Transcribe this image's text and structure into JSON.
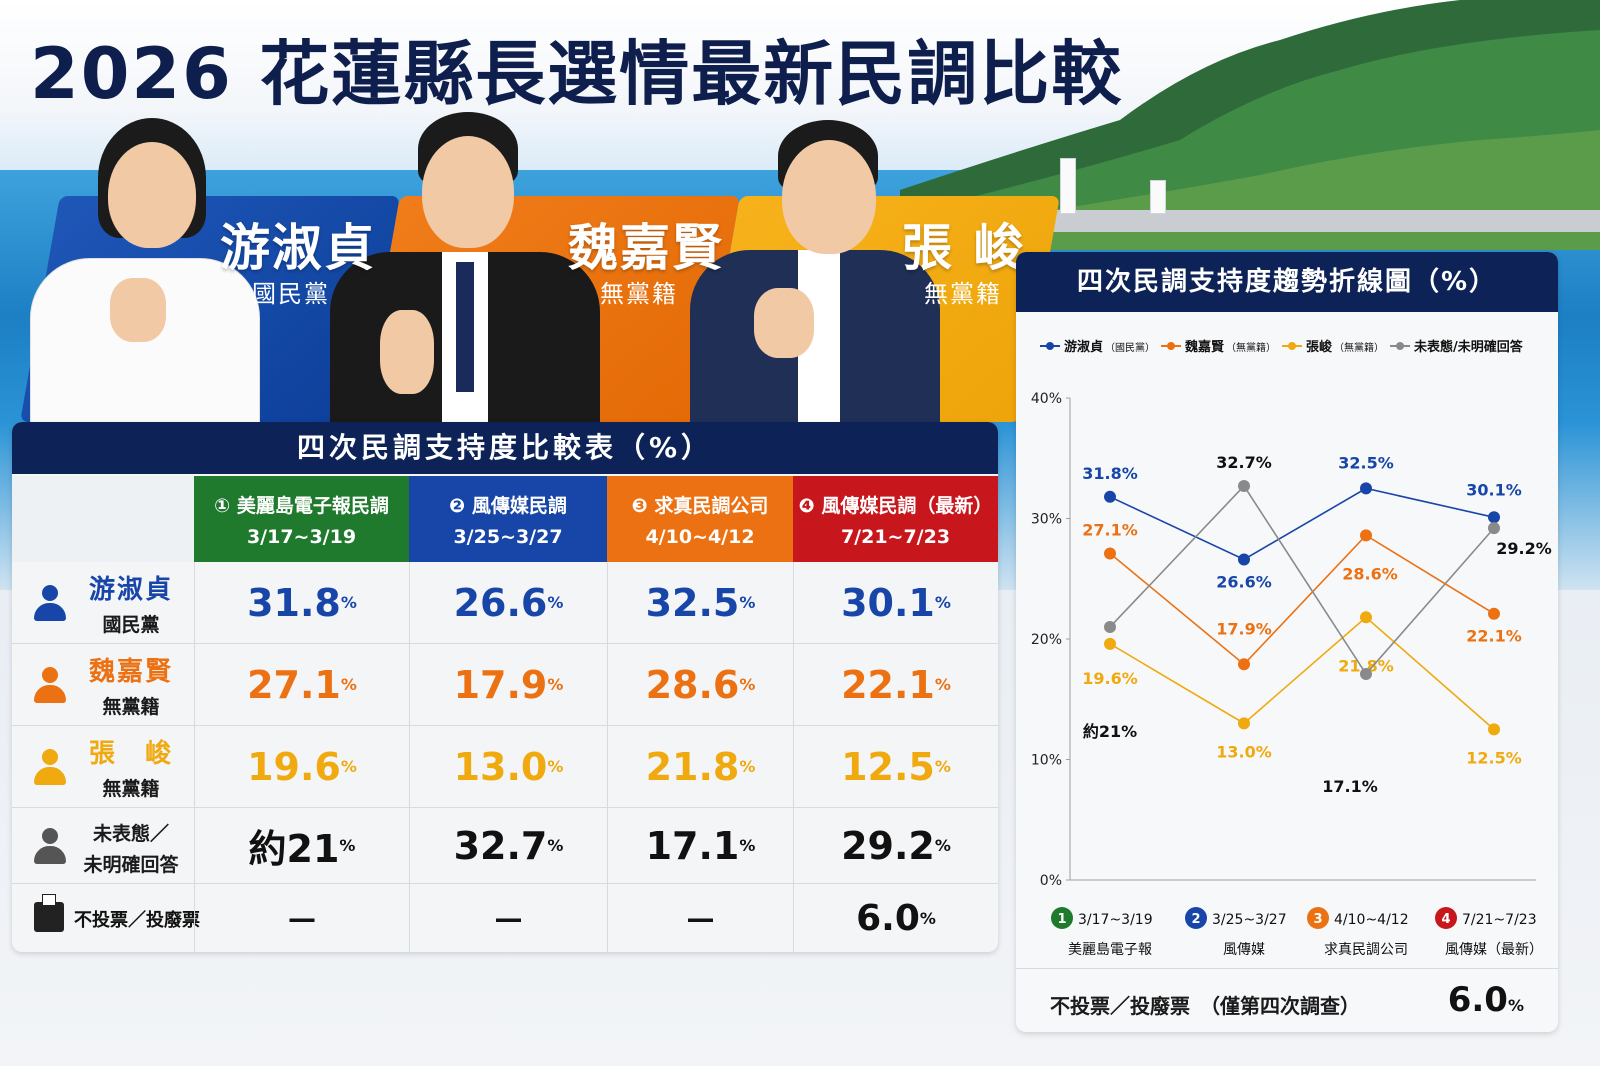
{
  "title": "2026 花蓮縣長選情最新民調比較",
  "candidates": [
    {
      "name": "游淑貞",
      "party": "國民黨",
      "color": "#1846a8"
    },
    {
      "name": "魏嘉賢",
      "party": "無黨籍",
      "color": "#ec7112"
    },
    {
      "name": "張 峻",
      "party": "無黨籍",
      "color": "#f0a90e"
    }
  ],
  "table": {
    "title": "四次民調支持度比較表（%）",
    "columns": [
      {
        "num": "①",
        "name": "美麗島電子報民調",
        "date": "3/17~3/19",
        "color": "#1f7a2e"
      },
      {
        "num": "❷",
        "name": "風傳媒民調",
        "date": "3/25~3/27",
        "color": "#1846a8"
      },
      {
        "num": "❸",
        "name": "求真民調公司",
        "date": "4/10~4/12",
        "color": "#ec7112"
      },
      {
        "num": "❹",
        "name": "風傳媒民調（最新）",
        "date": "7/21~7/23",
        "color": "#c8161d"
      }
    ],
    "rows": [
      {
        "name": "游淑貞",
        "party": "國民黨",
        "color": "#1846a8",
        "values": [
          "31.8",
          "26.6",
          "32.5",
          "30.1"
        ]
      },
      {
        "name": "魏嘉賢",
        "party": "無黨籍",
        "color": "#ec7112",
        "values": [
          "27.1",
          "17.9",
          "28.6",
          "22.1"
        ]
      },
      {
        "name": "張　峻",
        "party": "無黨籍",
        "color": "#f0a90e",
        "values": [
          "19.6",
          "13.0",
          "21.8",
          "12.5"
        ]
      },
      {
        "name_line1": "未表態／",
        "name_line2": "未明確回答",
        "color": "#111111",
        "icon_color": "#555555",
        "values": [
          "約21",
          "32.7",
          "17.1",
          "29.2"
        ]
      }
    ],
    "invalid_row": {
      "label": "不投票／投廢票",
      "values": [
        "—",
        "—",
        "—",
        "6.0"
      ]
    },
    "unit": "%"
  },
  "chart_data": {
    "type": "line",
    "title": "四次民調支持度趨勢折線圖（%）",
    "categories": [
      "3/17~3/19",
      "3/25~3/27",
      "4/10~4/12",
      "7/21~7/23"
    ],
    "category_sources": [
      "美麗島電子報",
      "風傳媒",
      "求真民調公司",
      "風傳媒（最新）"
    ],
    "category_numbers": [
      "1",
      "2",
      "3",
      "4"
    ],
    "category_colors": [
      "#1f7a2e",
      "#1846a8",
      "#ec7112",
      "#c8161d"
    ],
    "ylim": [
      0,
      40
    ],
    "yticks": [
      "0%",
      "10%",
      "20%",
      "30%",
      "40%"
    ],
    "series": [
      {
        "name": "游淑貞",
        "tag": "（國民黨）",
        "color": "#1846a8",
        "values": [
          31.8,
          26.6,
          32.5,
          30.1
        ],
        "labels": [
          "31.8%",
          "26.6%",
          "32.5%",
          "30.1%"
        ]
      },
      {
        "name": "魏嘉賢",
        "tag": "（無黨籍）",
        "color": "#ec7112",
        "values": [
          27.1,
          17.9,
          28.6,
          22.1
        ],
        "labels": [
          "27.1%",
          "17.9%",
          "28.6%",
          "22.1%"
        ]
      },
      {
        "name": "張峻",
        "tag": "（無黨籍）",
        "color": "#f0a90e",
        "values": [
          19.6,
          13.0,
          21.8,
          12.5
        ],
        "labels": [
          "19.6%",
          "13.0%",
          "21.8%",
          "12.5%"
        ]
      },
      {
        "name": "未表態/未明確回答",
        "tag": "",
        "color": "#8a8a8a",
        "values": [
          21,
          32.7,
          17.1,
          29.2
        ],
        "labels": [
          "約21%",
          "32.7%",
          "17.1%",
          "29.2%"
        ]
      }
    ],
    "legend_position": "top",
    "grid": false
  },
  "footer": {
    "label": "不投票／投廢票　（僅第四次調查）",
    "value": "6.0",
    "unit": "%"
  }
}
